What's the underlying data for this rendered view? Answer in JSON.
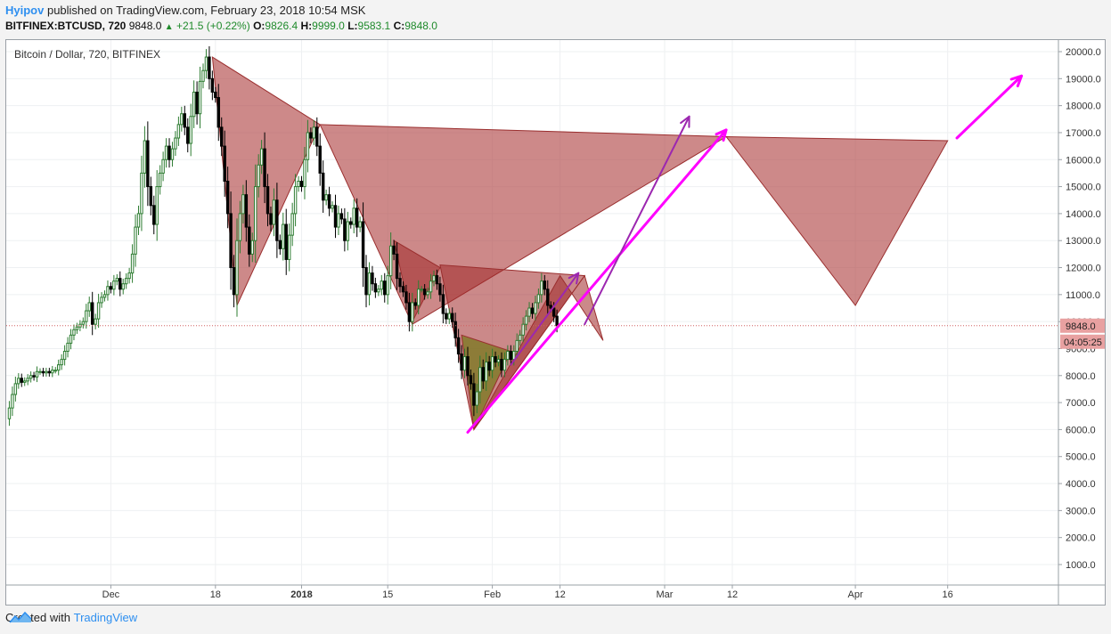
{
  "header": {
    "author": "Hyipov",
    "published_text": "published on TradingView.com, February 23, 2018 10:54 MSK",
    "symbol": "BITFINEX:BTCUSD, 720",
    "price": "9848.0",
    "change": "+21.5 (+0.22%)",
    "open_label": "O:",
    "open": "9826.4",
    "high_label": "H:",
    "high": "9999.0",
    "low_label": "L:",
    "low": "9583.1",
    "close_label": "C:",
    "close": "9848.0"
  },
  "chart_title": "Bitcoin / Dollar, 720, BITFINEX",
  "price_tag": "9848.0",
  "timer_tag": "04:05:25",
  "footer": {
    "created_with": "Created with",
    "brand": "TradingView"
  },
  "colors": {
    "up": "#2e7d32",
    "down": "#000000",
    "pattern": "#b24a4a",
    "projection": "#ff00ff",
    "arrow": "#9c27b0",
    "tag": "#e8a1a1"
  },
  "chart_data": {
    "type": "candlestick",
    "title": "Bitcoin / Dollar, 720, BITFINEX",
    "ylim": [
      0,
      20500
    ],
    "y_ticks": [
      1000,
      2000,
      3000,
      4000,
      5000,
      6000,
      7000,
      8000,
      9000,
      10000,
      11000,
      12000,
      13000,
      14000,
      15000,
      16000,
      17000,
      18000,
      19000,
      20000
    ],
    "y_tick_labels": [
      "1000.0",
      "2000.0",
      "3000.0",
      "4000.0",
      "5000.0",
      "6000.0",
      "7000.0",
      "8000.0",
      "9000.0",
      "10000.0",
      "11000.0",
      "12000.0",
      "13000.0",
      "14000.0",
      "15000.0",
      "16000.0",
      "17000.0",
      "18000.0",
      "19000.0",
      "20000.0"
    ],
    "x_ticks": [
      {
        "day": 27,
        "label": "Dec",
        "bold": false
      },
      {
        "day": 44,
        "label": "18",
        "bold": false
      },
      {
        "day": 58,
        "label": "2018",
        "bold": true
      },
      {
        "day": 72,
        "label": "15",
        "bold": false
      },
      {
        "day": 89,
        "label": "Feb",
        "bold": false
      },
      {
        "day": 100,
        "label": "12",
        "bold": false
      },
      {
        "day": 117,
        "label": "Mar",
        "bold": false
      },
      {
        "day": 128,
        "label": "12",
        "bold": false
      },
      {
        "day": 148,
        "label": "Apr",
        "bold": false
      },
      {
        "day": 163,
        "label": "16",
        "bold": false
      }
    ],
    "x_range_days": [
      10,
      181
    ],
    "close_series": [
      [
        10.0,
        6400
      ],
      [
        10.5,
        6800
      ],
      [
        11.0,
        7300
      ],
      [
        11.5,
        7700
      ],
      [
        12.0,
        7900
      ],
      [
        12.5,
        7750
      ],
      [
        13.0,
        7800
      ],
      [
        13.5,
        7900
      ],
      [
        14.0,
        8000
      ],
      [
        14.5,
        7950
      ],
      [
        15.0,
        8150
      ],
      [
        15.5,
        8150
      ],
      [
        16.0,
        8100
      ],
      [
        16.5,
        8150
      ],
      [
        17.0,
        8100
      ],
      [
        17.5,
        8200
      ],
      [
        18.0,
        8200
      ],
      [
        18.5,
        8400
      ],
      [
        19.0,
        8600
      ],
      [
        19.5,
        8900
      ],
      [
        20.0,
        9200
      ],
      [
        20.5,
        9500
      ],
      [
        21.0,
        9700
      ],
      [
        21.5,
        9800
      ],
      [
        22.0,
        9900
      ],
      [
        22.5,
        10000
      ],
      [
        23.0,
        10400
      ],
      [
        23.5,
        10700
      ],
      [
        24.0,
        9900
      ],
      [
        24.5,
        10100
      ],
      [
        25.0,
        10700
      ],
      [
        25.5,
        10900
      ],
      [
        26.0,
        11000
      ],
      [
        26.5,
        11300
      ],
      [
        27.0,
        11200
      ],
      [
        27.5,
        11500
      ],
      [
        28.0,
        11600
      ],
      [
        28.5,
        11200
      ],
      [
        29.0,
        11400
      ],
      [
        29.5,
        11600
      ],
      [
        30.0,
        11800
      ],
      [
        30.5,
        12500
      ],
      [
        31.0,
        13500
      ],
      [
        31.5,
        14000
      ],
      [
        32.0,
        15500
      ],
      [
        32.5,
        16700
      ],
      [
        33.0,
        15000
      ],
      [
        33.5,
        14300
      ],
      [
        34.0,
        13600
      ],
      [
        34.5,
        15000
      ],
      [
        35.0,
        15500
      ],
      [
        35.5,
        16000
      ],
      [
        36.0,
        16500
      ],
      [
        36.5,
        16000
      ],
      [
        37.0,
        16400
      ],
      [
        37.5,
        16800
      ],
      [
        38.0,
        17300
      ],
      [
        38.5,
        17700
      ],
      [
        39.0,
        17200
      ],
      [
        39.5,
        16600
      ],
      [
        40.0,
        17600
      ],
      [
        40.5,
        18500
      ],
      [
        41.0,
        17700
      ],
      [
        41.5,
        18900
      ],
      [
        42.0,
        19300
      ],
      [
        42.5,
        19800
      ],
      [
        43.0,
        19000
      ],
      [
        43.5,
        18500
      ],
      [
        44.0,
        18300
      ],
      [
        44.5,
        17200
      ],
      [
        45.0,
        16500
      ],
      [
        45.5,
        15200
      ],
      [
        46.0,
        14000
      ],
      [
        46.5,
        12000
      ],
      [
        47.0,
        11000
      ],
      [
        47.5,
        13000
      ],
      [
        48.0,
        14000
      ],
      [
        48.5,
        14700
      ],
      [
        49.0,
        13500
      ],
      [
        49.5,
        12500
      ],
      [
        50.0,
        13000
      ],
      [
        50.5,
        15000
      ],
      [
        51.0,
        15800
      ],
      [
        51.5,
        16400
      ],
      [
        52.0,
        15000
      ],
      [
        52.5,
        14000
      ],
      [
        53.0,
        13600
      ],
      [
        53.5,
        14500
      ],
      [
        54.0,
        13000
      ],
      [
        54.5,
        12700
      ],
      [
        55.0,
        13600
      ],
      [
        55.5,
        12300
      ],
      [
        56.0,
        13200
      ],
      [
        56.5,
        14000
      ],
      [
        57.0,
        15000
      ],
      [
        57.5,
        15200
      ],
      [
        58.0,
        15000
      ],
      [
        58.5,
        16000
      ],
      [
        59.0,
        17000
      ],
      [
        59.5,
        16800
      ],
      [
        60.0,
        17200
      ],
      [
        60.5,
        16500
      ],
      [
        61.0,
        15500
      ],
      [
        61.5,
        14500
      ],
      [
        62.0,
        14700
      ],
      [
        62.5,
        14200
      ],
      [
        63.0,
        14300
      ],
      [
        63.5,
        13500
      ],
      [
        64.0,
        14000
      ],
      [
        64.5,
        13800
      ],
      [
        65.0,
        13000
      ],
      [
        65.5,
        13700
      ],
      [
        66.0,
        13600
      ],
      [
        66.5,
        14200
      ],
      [
        67.0,
        13500
      ],
      [
        67.5,
        13700
      ],
      [
        68.0,
        12000
      ],
      [
        68.5,
        11000
      ],
      [
        69.0,
        11800
      ],
      [
        69.5,
        11400
      ],
      [
        70.0,
        11100
      ],
      [
        70.5,
        11200
      ],
      [
        71.0,
        11500
      ],
      [
        71.5,
        11000
      ],
      [
        72.0,
        11700
      ],
      [
        72.5,
        12800
      ],
      [
        73.0,
        12500
      ],
      [
        73.5,
        11600
      ],
      [
        74.0,
        11300
      ],
      [
        74.5,
        11100
      ],
      [
        75.0,
        10700
      ],
      [
        75.5,
        10000
      ],
      [
        76.0,
        10700
      ],
      [
        76.5,
        10600
      ],
      [
        77.0,
        11200
      ],
      [
        77.5,
        11200
      ],
      [
        78.0,
        11000
      ],
      [
        78.5,
        11100
      ],
      [
        79.0,
        11500
      ],
      [
        79.5,
        11700
      ],
      [
        80.0,
        11400
      ],
      [
        80.5,
        11000
      ],
      [
        81.0,
        10300
      ],
      [
        81.5,
        10100
      ],
      [
        82.0,
        10300
      ],
      [
        82.5,
        10000
      ],
      [
        83.0,
        9400
      ],
      [
        83.5,
        8800
      ],
      [
        84.0,
        8200
      ],
      [
        84.5,
        8700
      ],
      [
        85.0,
        8000
      ],
      [
        85.5,
        7700
      ],
      [
        86.0,
        6900
      ],
      [
        86.5,
        7400
      ],
      [
        87.0,
        8300
      ],
      [
        87.5,
        7800
      ],
      [
        88.0,
        8500
      ],
      [
        88.5,
        8200
      ],
      [
        89.0,
        8700
      ],
      [
        89.5,
        8500
      ],
      [
        90.0,
        8600
      ],
      [
        90.5,
        8200
      ],
      [
        91.0,
        8600
      ],
      [
        91.5,
        8900
      ],
      [
        92.0,
        8600
      ],
      [
        92.5,
        8900
      ],
      [
        93.0,
        9300
      ],
      [
        93.5,
        9500
      ],
      [
        94.0,
        9900
      ],
      [
        94.5,
        10200
      ],
      [
        95.0,
        10500
      ],
      [
        95.5,
        10300
      ],
      [
        96.0,
        10700
      ],
      [
        96.5,
        11000
      ],
      [
        97.0,
        11500
      ],
      [
        97.5,
        11200
      ],
      [
        98.0,
        10600
      ],
      [
        98.5,
        10500
      ],
      [
        99.0,
        10200
      ],
      [
        99.5,
        9848
      ]
    ],
    "pattern_triangles": [
      {
        "points": [
          [
            43.5,
            19800
          ],
          [
            47.5,
            10600
          ],
          [
            61.0,
            17300
          ]
        ],
        "shade": "light"
      },
      {
        "points": [
          [
            61.0,
            17300
          ],
          [
            76.0,
            9900
          ],
          [
            127.0,
            16850
          ]
        ],
        "shade": "light"
      },
      {
        "points": [
          [
            127.0,
            16850
          ],
          [
            148.0,
            10600
          ],
          [
            163.0,
            16700
          ]
        ],
        "shade": "light"
      },
      {
        "points": [
          [
            73.0,
            13000
          ],
          [
            76.0,
            10000
          ],
          [
            80.5,
            12000
          ]
        ],
        "shade": "mid"
      },
      {
        "points": [
          [
            80.5,
            12100
          ],
          [
            86.0,
            6000
          ],
          [
            104.0,
            11700
          ]
        ],
        "shade": "mid"
      },
      {
        "points": [
          [
            86.0,
            6000
          ],
          [
            100.0,
            11700
          ],
          [
            107.0,
            9300
          ],
          [
            104.0,
            11700
          ]
        ],
        "shade": "mid"
      },
      {
        "points": [
          [
            84.0,
            9500
          ],
          [
            86.0,
            6000
          ],
          [
            92.0,
            8900
          ]
        ],
        "shade": "dark"
      }
    ],
    "projection_lines": [
      {
        "from": [
          85.0,
          5900
        ],
        "to": [
          127.0,
          17100
        ],
        "color": "#ff00ff",
        "dashed": false
      },
      {
        "from": [
          164.5,
          16800
        ],
        "to": [
          175.0,
          19100
        ],
        "color": "#ff00ff",
        "dashed": false
      },
      {
        "from": [
          92.0,
          8400
        ],
        "to": [
          103.0,
          11800
        ],
        "color": "#9c27b0",
        "dashed": false
      },
      {
        "from": [
          104.0,
          9900
        ],
        "to": [
          121.0,
          17600
        ],
        "color": "#9c27b0",
        "dashed": false
      }
    ],
    "current_price": 9848.0
  }
}
